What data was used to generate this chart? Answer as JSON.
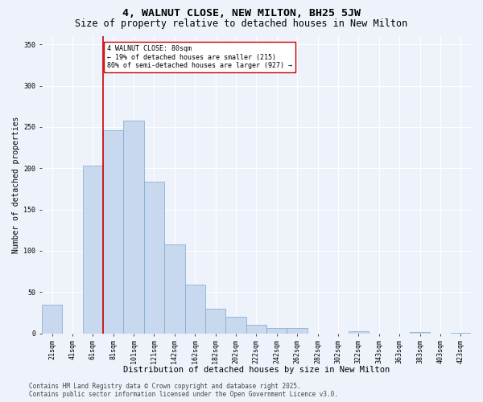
{
  "title": "4, WALNUT CLOSE, NEW MILTON, BH25 5JW",
  "subtitle": "Size of property relative to detached houses in New Milton",
  "xlabel": "Distribution of detached houses by size in New Milton",
  "ylabel": "Number of detached properties",
  "categories": [
    "21sqm",
    "41sqm",
    "61sqm",
    "81sqm",
    "101sqm",
    "121sqm",
    "142sqm",
    "162sqm",
    "182sqm",
    "202sqm",
    "222sqm",
    "242sqm",
    "262sqm",
    "282sqm",
    "302sqm",
    "322sqm",
    "343sqm",
    "363sqm",
    "383sqm",
    "403sqm",
    "423sqm"
  ],
  "values": [
    35,
    0,
    203,
    246,
    258,
    184,
    108,
    59,
    30,
    20,
    10,
    6,
    6,
    0,
    0,
    3,
    0,
    0,
    2,
    0,
    1
  ],
  "bar_color": "#c8d8ee",
  "bar_edge_color": "#7fa8cc",
  "vline_bin_index": 3,
  "vline_color": "#cc0000",
  "annotation_text": "4 WALNUT CLOSE: 80sqm\n← 19% of detached houses are smaller (215)\n80% of semi-detached houses are larger (927) →",
  "annotation_box_color": "#ffffff",
  "annotation_box_edge_color": "#cc0000",
  "ylim": [
    0,
    360
  ],
  "yticks": [
    0,
    50,
    100,
    150,
    200,
    250,
    300,
    350
  ],
  "footer": "Contains HM Land Registry data © Crown copyright and database right 2025.\nContains public sector information licensed under the Open Government Licence v3.0.",
  "bg_color": "#eef2fb",
  "plot_bg_color": "#eef2fb",
  "grid_color": "#ffffff",
  "title_fontsize": 9.5,
  "subtitle_fontsize": 8.5,
  "ylabel_fontsize": 7,
  "xlabel_fontsize": 7.5,
  "tick_fontsize": 6,
  "annot_fontsize": 6,
  "footer_fontsize": 5.5
}
